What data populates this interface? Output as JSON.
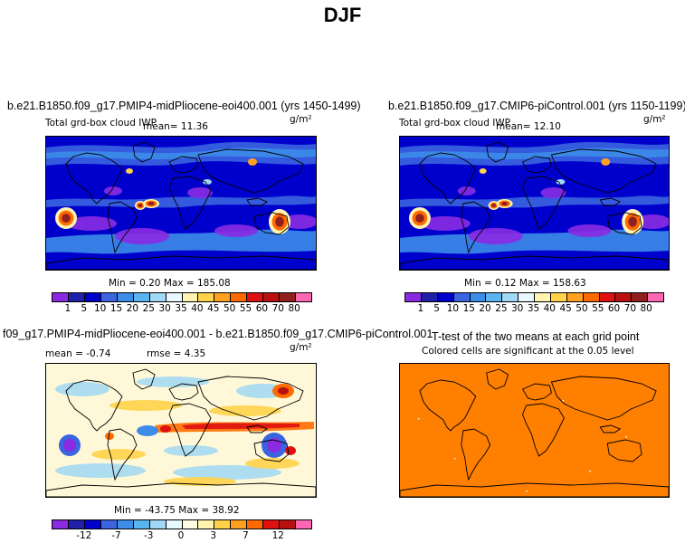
{
  "title": "DJF",
  "panels": [
    {
      "title": "b.e21.B1850.f09_g17.PMIP4-midPliocene-eoi400.001 (yrs 1450-1499)",
      "subtitle": "Total grd-box cloud IWP",
      "mean_text": "mean=   11.36",
      "units": "g/m²",
      "minmax": "Min =    0.20 Max =  185.08"
    },
    {
      "title": "b.e21.B1850.f09_g17.CMIP6-piControl.001 (yrs 1150-1199)",
      "subtitle": "Total grd-box cloud IWP",
      "mean_text": "mean=   12.10",
      "units": "g/m²",
      "minmax": "Min =    0.12 Max =  158.63"
    },
    {
      "title": "f09_g17.PMIP4-midPliocene-eoi400.001 - b.e21.B1850.f09_g17.CMIP6-piControl.001",
      "mean_text": "mean =    -0.74",
      "rmse_text": "rmse =    4.35",
      "units": "g/m²",
      "minmax": "Min = -43.75 Max =   38.92"
    },
    {
      "title": "T-test of the two means at each grid point",
      "subtitle": "Colored cells are significant at the 0.05 level"
    }
  ],
  "colors": {
    "abs_scale": [
      "#8a2be2",
      "#2020a8",
      "#0000cd",
      "#3a64e0",
      "#3c8ce8",
      "#5ab4f0",
      "#a0d8f5",
      "#e8f8ff",
      "#fff5b0",
      "#ffd24a",
      "#ffa020",
      "#ff6a00",
      "#e01010",
      "#b81010",
      "#902020",
      "#ff66b3"
    ],
    "diff_scale": [
      "#8a2be2",
      "#2020a8",
      "#0000cd",
      "#3a64e0",
      "#3c8ce8",
      "#5ab4f0",
      "#a0d8f5",
      "#e8f8ff",
      "#fffbe0",
      "#fff5b0",
      "#ffd24a",
      "#ffa020",
      "#ff6a00",
      "#e01010",
      "#b81010",
      "#ff66b3"
    ],
    "ttest_fill": "#ff7f00"
  },
  "chart_data": [
    {
      "type": "heatmap",
      "title": "b.e21.B1850.f09_g17.PMIP4-midPliocene-eoi400.001 (yrs 1450-1499)",
      "variable": "Total grd-box cloud IWP",
      "units": "g/m²",
      "mean": 11.36,
      "min": 0.2,
      "max": 185.08,
      "colorbar_levels": [
        1,
        5,
        10,
        15,
        20,
        25,
        30,
        35,
        40,
        45,
        50,
        55,
        60,
        70,
        80
      ]
    },
    {
      "type": "heatmap",
      "title": "b.e21.B1850.f09_g17.CMIP6-piControl.001 (yrs 1150-1199)",
      "variable": "Total grd-box cloud IWP",
      "units": "g/m²",
      "mean": 12.1,
      "min": 0.12,
      "max": 158.63,
      "colorbar_levels": [
        1,
        5,
        10,
        15,
        20,
        25,
        30,
        35,
        40,
        45,
        50,
        55,
        60,
        70,
        80
      ]
    },
    {
      "type": "heatmap",
      "title": "f09_g17.PMIP4-midPliocene-eoi400.001 - b.e21.B1850.f09_g17.CMIP6-piControl.001",
      "units": "g/m²",
      "mean": -0.74,
      "rmse": 4.35,
      "min": -43.75,
      "max": 38.92,
      "colorbar_tick_labels": [
        -12,
        -7,
        -3,
        0,
        3,
        7,
        12
      ]
    },
    {
      "type": "heatmap",
      "title": "T-test of the two means at each grid point",
      "subtitle": "Colored cells are significant at the 0.05 level",
      "significance_level": 0.05
    }
  ]
}
